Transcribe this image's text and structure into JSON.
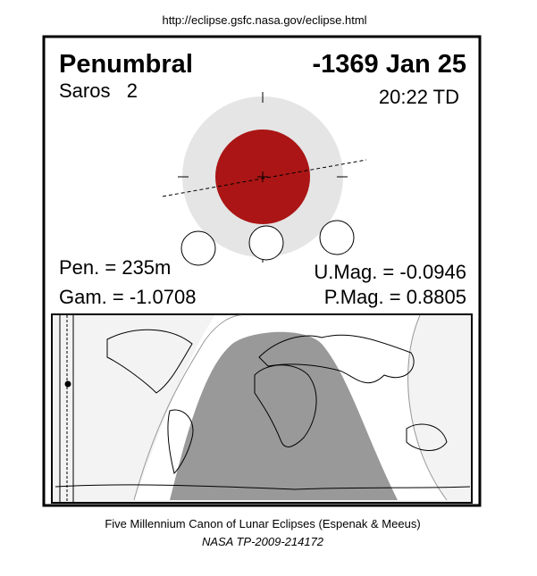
{
  "header": {
    "url": "http://eclipse.gsfc.nasa.gov/eclipse.html"
  },
  "eclipse": {
    "type": "Penumbral",
    "date": "-1369 Jan 25",
    "saros": "Saros   2",
    "time": "20:22 TD",
    "pen_duration": "Pen. = 235m",
    "gamma": "Gam. = -1.0708",
    "umag": "U.Mag. = -0.0946",
    "pmag": "P.Mag. = 0.8805"
  },
  "footer": {
    "canon": "Five Millennium Canon of Lunar Eclipses (Espenak & Meeus)",
    "reference": "NASA TP-2009-214172"
  }
}
